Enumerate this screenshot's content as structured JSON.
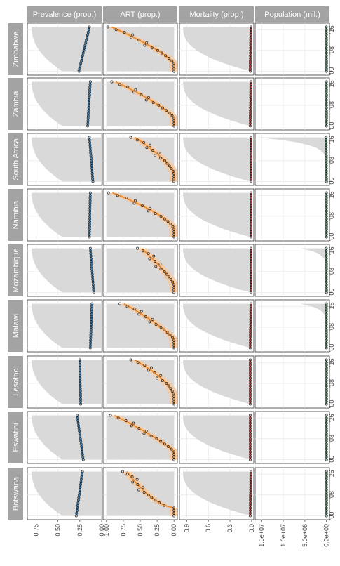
{
  "figure": {
    "variables": [
      {
        "key": "prev",
        "title": "Prevalence (prop.)",
        "ticks": [
          0,
          0.25,
          0.5,
          0.75
        ],
        "tick_labels": [
          "0.00",
          "0.25",
          "0.50",
          "0.75"
        ],
        "range": [
          0,
          0.85
        ]
      },
      {
        "key": "art",
        "title": "ART (prop.)",
        "ticks": [
          0,
          0.25,
          0.5,
          0.75,
          1
        ],
        "tick_labels": [
          "0.00",
          "0.25",
          "0.50",
          "0.75",
          "1.00"
        ],
        "range": [
          -0.05,
          1.05
        ]
      },
      {
        "key": "mort",
        "title": "Mortality (prop.)",
        "ticks": [
          0,
          0.3,
          0.6,
          0.9
        ],
        "tick_labels": [
          "0.0",
          "0.3",
          "0.6",
          "0.9"
        ],
        "range": [
          -0.03,
          1.0
        ]
      },
      {
        "key": "pop",
        "title": "Population (mil.)",
        "ticks": [
          0,
          5000000,
          10000000,
          15000000
        ],
        "tick_labels": [
          "0.0e+00",
          "5.0e+06",
          "1.0e+07",
          "1.5e+07"
        ],
        "range": [
          -700000,
          16500000
        ]
      }
    ],
    "year_ticks": [
      2000,
      2008,
      2016
    ],
    "year_tick_labels": [
      "'00",
      "'08",
      "'16"
    ],
    "year_range": [
      1998.5,
      2018.5
    ],
    "countries": [
      "Zimbabwe",
      "Zambia",
      "South Africa",
      "Namibia",
      "Mozambique",
      "Malawi",
      "Lesotho",
      "Eswatini",
      "Botswana"
    ]
  },
  "chart_data": {
    "type": "line",
    "orientation": "rotated 90 degrees: year runs down each panel (2000 at bottom), value increases right to left",
    "grid": true,
    "facets": "rows = variables, columns = countries",
    "years": [
      2000,
      2001,
      2002,
      2003,
      2004,
      2005,
      2006,
      2007,
      2008,
      2009,
      2010,
      2011,
      2012,
      2013,
      2014,
      2015,
      2016,
      2017
    ],
    "series": [
      {
        "country": "Zimbabwe",
        "prev_start": 0.26,
        "prev_end": 0.14,
        "art_end": 0.92,
        "art_curve": 1.3,
        "mort_start": 0.02,
        "mort_end": 0.01,
        "pop_end": 12000
      },
      {
        "country": "Zambia",
        "prev_start": 0.16,
        "prev_end": 0.13,
        "art_end": 0.86,
        "art_curve": 1.3,
        "mort_start": 0.02,
        "mort_end": 0.01,
        "pop_end": 8000
      },
      {
        "country": "South Africa",
        "prev_start": 0.1,
        "prev_end": 0.14,
        "art_end": 0.58,
        "art_curve": 1.4,
        "mort_start": 0.01,
        "mort_end": 0.01,
        "pop_end": 60000
      },
      {
        "country": "Namibia",
        "prev_start": 0.14,
        "prev_end": 0.13,
        "art_end": 0.91,
        "art_curve": 1.5,
        "mort_start": 0.01,
        "mort_end": 0.01,
        "pop_end": 9000
      },
      {
        "country": "Mozambique",
        "prev_start": 0.09,
        "prev_end": 0.13,
        "art_end": 0.48,
        "art_curve": 1.2,
        "mort_start": 0.01,
        "mort_end": 0.01,
        "pop_end": 25000
      },
      {
        "country": "Malawi",
        "prev_start": 0.13,
        "prev_end": 0.11,
        "art_end": 0.74,
        "art_curve": 1.3,
        "mort_start": 0.02,
        "mort_end": 0.01,
        "pop_end": 20000
      },
      {
        "country": "Lesotho",
        "prev_start": 0.24,
        "prev_end": 0.25,
        "art_end": 0.58,
        "art_curve": 1.6,
        "mort_start": 0.02,
        "mort_end": 0.02,
        "pop_end": 3000
      },
      {
        "country": "Eswatini",
        "prev_start": 0.21,
        "prev_end": 0.28,
        "art_end": 0.88,
        "art_curve": 1.2,
        "mort_start": 0.02,
        "mort_end": 0.02,
        "pop_end": 2000
      },
      {
        "country": "Botswana",
        "prev_start": 0.29,
        "prev_end": 0.22,
        "art_end": 0.7,
        "art_curve": 0.6,
        "mort_start": 0.02,
        "mort_end": 0.01,
        "pop_end": 2000
      }
    ]
  }
}
